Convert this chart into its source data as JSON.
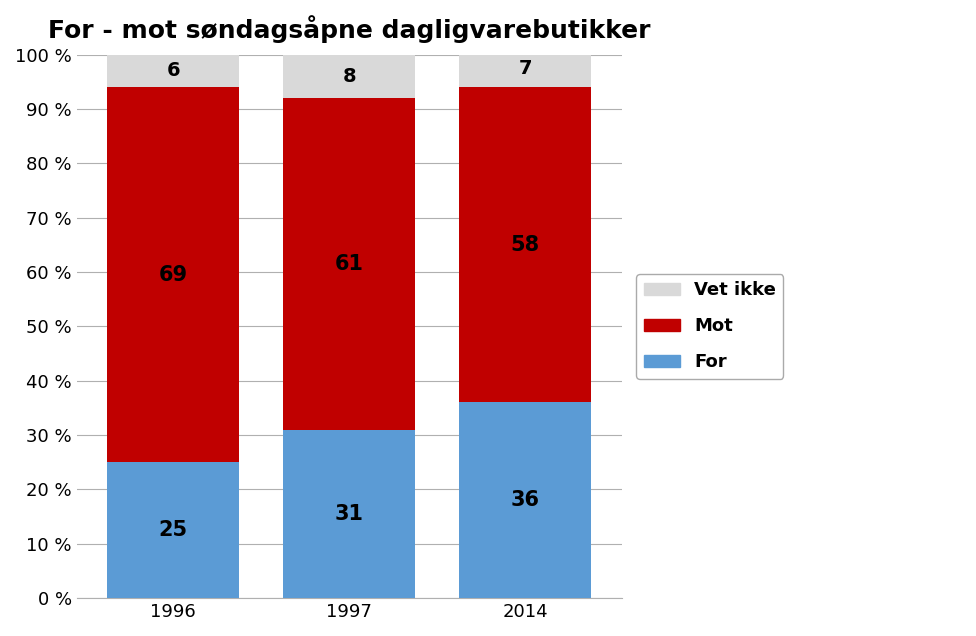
{
  "title": "For - mot søndagsåpne dagligvarebutikker",
  "categories": [
    "1996",
    "1997",
    "2014"
  ],
  "for_values": [
    25,
    31,
    36
  ],
  "mot_values": [
    69,
    61,
    58
  ],
  "vet_ikke_values": [
    6,
    8,
    7
  ],
  "color_for": "#5b9bd5",
  "color_mot": "#c00000",
  "color_vet_ikke": "#d9d9d9",
  "legend_labels": [
    "Vet ikke",
    "Mot",
    "For"
  ],
  "ylim": [
    0,
    100
  ],
  "yticks": [
    0,
    10,
    20,
    30,
    40,
    50,
    60,
    70,
    80,
    90,
    100
  ],
  "ytick_labels": [
    "0 %",
    "10 %",
    "20 %",
    "30 %",
    "40 %",
    "50 %",
    "60 %",
    "70 %",
    "80 %",
    "90 %",
    "100 %"
  ],
  "bar_width": 0.75,
  "title_fontsize": 18,
  "label_fontsize": 15,
  "tick_fontsize": 13,
  "legend_fontsize": 13,
  "bg_color": "#ffffff",
  "figsize": [
    9.76,
    6.36
  ],
  "dpi": 100
}
